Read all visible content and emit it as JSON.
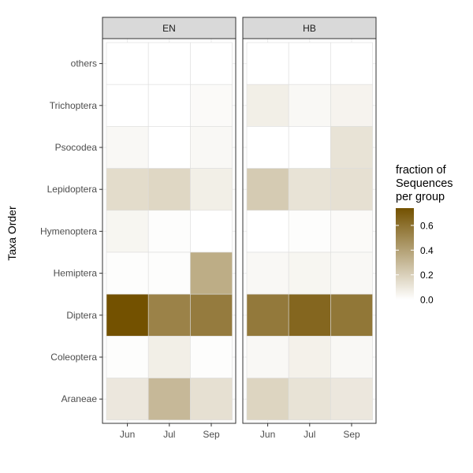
{
  "chart_data": {
    "type": "heatmap",
    "ylabel": "Taxa Order",
    "facets": [
      "EN",
      "HB"
    ],
    "months": [
      "Jun",
      "Jul",
      "Sep"
    ],
    "taxa": [
      "others",
      "Trichoptera",
      "Psocodea",
      "Lepidoptera",
      "Hymenoptera",
      "Hemiptera",
      "Diptera",
      "Coleoptera",
      "Araneae"
    ],
    "values": {
      "EN": {
        "others": [
          0.0,
          0.0,
          0.0
        ],
        "Trichoptera": [
          0.0,
          0.0,
          0.02
        ],
        "Psocodea": [
          0.03,
          0.0,
          0.03
        ],
        "Lepidoptera": [
          0.15,
          0.17,
          0.07
        ],
        "Hymenoptera": [
          0.04,
          0.01,
          0.0
        ],
        "Hemiptera": [
          0.01,
          0.01,
          0.35
        ],
        "Diptera": [
          0.74,
          0.53,
          0.56
        ],
        "Coleoptera": [
          0.01,
          0.07,
          0.01
        ],
        "Araneae": [
          0.1,
          0.3,
          0.13
        ]
      },
      "HB": {
        "others": [
          0.0,
          0.0,
          0.0
        ],
        "Trichoptera": [
          0.07,
          0.03,
          0.05
        ],
        "Psocodea": [
          0.0,
          0.0,
          0.12
        ],
        "Lepidoptera": [
          0.22,
          0.12,
          0.13
        ],
        "Hymenoptera": [
          0.0,
          0.01,
          0.02
        ],
        "Hemiptera": [
          0.03,
          0.04,
          0.03
        ],
        "Diptera": [
          0.57,
          0.65,
          0.58
        ],
        "Coleoptera": [
          0.03,
          0.06,
          0.03
        ],
        "Araneae": [
          0.18,
          0.12,
          0.1
        ]
      }
    },
    "legend": {
      "title": [
        "fraction of",
        "Sequences",
        "per group"
      ],
      "ticks": [
        "0.0",
        "0.2",
        "0.4",
        "0.6"
      ],
      "tick_values": [
        0.0,
        0.2,
        0.4,
        0.6
      ],
      "range": [
        0,
        0.74
      ],
      "color_low": "#ffffff",
      "color_high": "#735100"
    },
    "grid": true,
    "legend_position": "right"
  },
  "colors": {
    "strip_bg": "#d9d9d9",
    "panel_border": "#333333",
    "grid": "#ebebeb",
    "tile_border": "#dddddd"
  }
}
